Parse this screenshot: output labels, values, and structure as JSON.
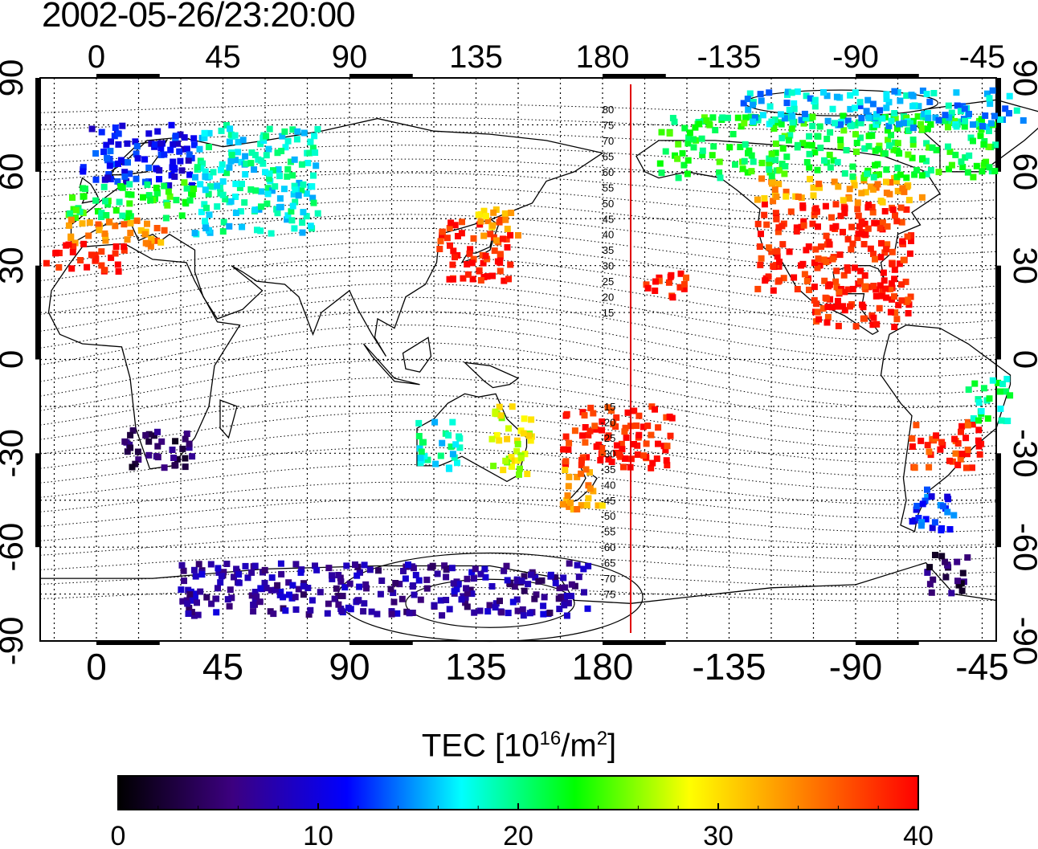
{
  "timestamp": "2002-05-26/23:20:00",
  "map": {
    "top_ticks": [
      "0",
      "45",
      "90",
      "135",
      "180",
      "-135",
      "-90",
      "-45"
    ],
    "bottom_ticks": [
      "0",
      "45",
      "90",
      "135",
      "180",
      "-135",
      "-90",
      "-45"
    ],
    "lat_ticks": [
      "90",
      "60",
      "30",
      "0",
      "-30",
      "-60",
      "-90"
    ],
    "lon_range": [
      -20,
      320
    ],
    "lat_range": [
      -90,
      90
    ],
    "terminator_lon": 190,
    "terminator_color": "#e00000",
    "contour_labels": [
      "80",
      "75",
      "70",
      "65",
      "60",
      "55",
      "50",
      "45",
      "40",
      "35",
      "30",
      "25",
      "20",
      "15",
      "-15",
      "-20",
      "-25",
      "-30",
      "-35",
      "-40",
      "-45",
      "-50",
      "-55",
      "-60",
      "-65",
      "-70",
      "-75"
    ],
    "contour_label_lats": [
      80,
      75,
      70,
      65,
      60,
      55,
      50,
      45,
      40,
      35,
      30,
      25,
      20,
      15,
      -15,
      -20,
      -25,
      -30,
      -35,
      -40,
      -45,
      -50,
      -55,
      -60,
      -65,
      -70,
      -75
    ],
    "tec_regions": [
      {
        "region": "europe-north",
        "lon": [
          -5,
          35
        ],
        "lat": [
          55,
          75
        ],
        "tec": 11
      },
      {
        "region": "europe-central",
        "lon": [
          -10,
          35
        ],
        "lat": [
          45,
          57
        ],
        "tec": 22
      },
      {
        "region": "europe-south",
        "lon": [
          -10,
          25
        ],
        "lat": [
          36,
          45
        ],
        "tec": 34
      },
      {
        "region": "iberia-nafrica",
        "lon": [
          -18,
          10
        ],
        "lat": [
          28,
          37
        ],
        "tec": 39
      },
      {
        "region": "russia",
        "lon": [
          35,
          80
        ],
        "lat": [
          40,
          75
        ],
        "tec": 18
      },
      {
        "region": "japan",
        "lon": [
          122,
          148
        ],
        "lat": [
          25,
          45
        ],
        "tec": 39
      },
      {
        "region": "japan-north",
        "lon": [
          135,
          150
        ],
        "lat": [
          38,
          48
        ],
        "tec": 32
      },
      {
        "region": "north-america",
        "lon": [
          235,
          290
        ],
        "lat": [
          22,
          50
        ],
        "tec": 39
      },
      {
        "region": "north-america-north",
        "lon": [
          235,
          295
        ],
        "lat": [
          50,
          58
        ],
        "tec": 33
      },
      {
        "region": "canada",
        "lon": [
          200,
          320
        ],
        "lat": [
          58,
          78
        ],
        "tec": 22
      },
      {
        "region": "arctic",
        "lon": [
          230,
          330
        ],
        "lat": [
          74,
          86
        ],
        "tec": 16
      },
      {
        "region": "southern-africa",
        "lon": [
          10,
          35
        ],
        "lat": [
          -35,
          -22
        ],
        "tec": 4
      },
      {
        "region": "australia-west",
        "lon": [
          113,
          130
        ],
        "lat": [
          -35,
          -20
        ],
        "tec": 18
      },
      {
        "region": "australia-east",
        "lon": [
          140,
          155
        ],
        "lat": [
          -38,
          -15
        ],
        "tec": 28
      },
      {
        "region": "pacific-south",
        "lon": [
          165,
          205
        ],
        "lat": [
          -35,
          -15
        ],
        "tec": 39
      },
      {
        "region": "new-zealand",
        "lon": [
          165,
          180
        ],
        "lat": [
          -48,
          -35
        ],
        "tec": 33
      },
      {
        "region": "south-america",
        "lon": [
          290,
          315
        ],
        "lat": [
          -35,
          -20
        ],
        "tec": 38
      },
      {
        "region": "south-america-east",
        "lon": [
          310,
          325
        ],
        "lat": [
          -20,
          -5
        ],
        "tec": 20
      },
      {
        "region": "patagonia",
        "lon": [
          290,
          305
        ],
        "lat": [
          -55,
          -40
        ],
        "tec": 12
      },
      {
        "region": "antarctica",
        "lon": [
          30,
          175
        ],
        "lat": [
          -82,
          -65
        ],
        "tec": 7
      },
      {
        "region": "antarctic-peninsula",
        "lon": [
          295,
          310
        ],
        "lat": [
          -75,
          -62
        ],
        "tec": 4
      },
      {
        "region": "caribbean",
        "lon": [
          255,
          290
        ],
        "lat": [
          10,
          25
        ],
        "tec": 39
      },
      {
        "region": "pacific-north",
        "lon": [
          195,
          210
        ],
        "lat": [
          18,
          28
        ],
        "tec": 39
      }
    ]
  },
  "colorbar": {
    "title_main": "TEC  [10",
    "title_exp": "16",
    "title_unit": "/m",
    "title_exp2": "2",
    "title_end": "]",
    "ticks": [
      "0",
      "10",
      "20",
      "30",
      "40"
    ],
    "range": [
      0,
      40
    ],
    "colors": [
      "#000000",
      "#3c0080",
      "#0000ff",
      "#00ffff",
      "#00ff00",
      "#ffff00",
      "#ff8000",
      "#ff0000"
    ]
  }
}
